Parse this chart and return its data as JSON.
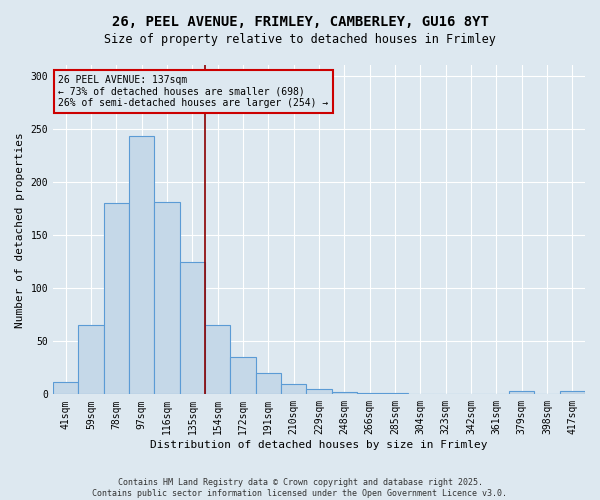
{
  "title_line1": "26, PEEL AVENUE, FRIMLEY, CAMBERLEY, GU16 8YT",
  "title_line2": "Size of property relative to detached houses in Frimley",
  "xlabel": "Distribution of detached houses by size in Frimley",
  "ylabel": "Number of detached properties",
  "annotation_title": "26 PEEL AVENUE: 137sqm",
  "annotation_line2": "← 73% of detached houses are smaller (698)",
  "annotation_line3": "26% of semi-detached houses are larger (254) →",
  "footnote_line1": "Contains HM Land Registry data © Crown copyright and database right 2025.",
  "footnote_line2": "Contains public sector information licensed under the Open Government Licence v3.0.",
  "bin_labels": [
    "41sqm",
    "59sqm",
    "78sqm",
    "97sqm",
    "116sqm",
    "135sqm",
    "154sqm",
    "172sqm",
    "191sqm",
    "210sqm",
    "229sqm",
    "248sqm",
    "266sqm",
    "285sqm",
    "304sqm",
    "323sqm",
    "342sqm",
    "361sqm",
    "379sqm",
    "398sqm",
    "417sqm"
  ],
  "bar_values": [
    12,
    65,
    180,
    243,
    181,
    125,
    65,
    35,
    20,
    10,
    5,
    2,
    1,
    1,
    0,
    0,
    0,
    0,
    3,
    0,
    3
  ],
  "bar_color": "#c5d8e8",
  "bar_edge_color": "#5b9bd5",
  "vline_color": "#8b0000",
  "vline_position": 5.5,
  "annotation_box_color": "#cc0000",
  "background_color": "#dde8f0",
  "ylim": [
    0,
    310
  ],
  "yticks": [
    0,
    50,
    100,
    150,
    200,
    250,
    300
  ],
  "grid_color": "#ffffff",
  "title_fontsize": 10,
  "subtitle_fontsize": 8.5,
  "ylabel_fontsize": 8,
  "xlabel_fontsize": 8,
  "tick_fontsize": 7,
  "annotation_fontsize": 7,
  "footnote_fontsize": 6
}
